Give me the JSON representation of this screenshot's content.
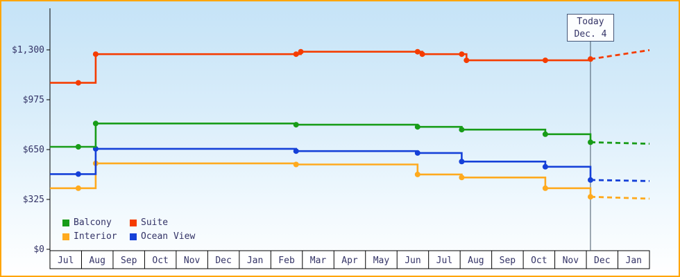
{
  "chart_data": {
    "type": "line",
    "subtype": "step-price-history",
    "title": "",
    "y_axis": {
      "min": 0,
      "max": 1300,
      "ticks": [
        {
          "label": "$1,300",
          "value": 1300
        },
        {
          "label": "$975",
          "value": 975
        },
        {
          "label": "$650",
          "value": 650
        },
        {
          "label": "$325",
          "value": 325
        },
        {
          "label": "$0",
          "value": 0
        }
      ]
    },
    "x_axis": {
      "unit": "month",
      "months": [
        "Jul",
        "Aug",
        "Sep",
        "Oct",
        "Nov",
        "Dec",
        "Jan",
        "Feb",
        "Mar",
        "Apr",
        "May",
        "Jun",
        "Jul",
        "Aug",
        "Sep",
        "Oct",
        "Nov",
        "Dec",
        "Jan"
      ]
    },
    "today": {
      "line1": "Today",
      "line2": "Dec. 4",
      "month_position": 17.13
    },
    "series": [
      {
        "name": "Interior",
        "color": "#ffaa1e",
        "points": [
          [
            0,
            398
          ],
          [
            0.9,
            398
          ],
          [
            1.45,
            560
          ],
          [
            7.8,
            553
          ],
          [
            11.65,
            488
          ],
          [
            13.05,
            468
          ],
          [
            15.7,
            398
          ],
          [
            17.13,
            342
          ]
        ],
        "forecast": [
          [
            17.13,
            342
          ],
          [
            19,
            330
          ]
        ]
      },
      {
        "name": "Ocean View",
        "color": "#1540d8",
        "points": [
          [
            0,
            490
          ],
          [
            0.9,
            490
          ],
          [
            1.45,
            655
          ],
          [
            7.8,
            640
          ],
          [
            11.65,
            628
          ],
          [
            13.05,
            572
          ],
          [
            15.7,
            538
          ],
          [
            17.13,
            452
          ]
        ],
        "forecast": [
          [
            17.13,
            452
          ],
          [
            19,
            445
          ]
        ]
      },
      {
        "name": "Balcony",
        "color": "#189c18",
        "points": [
          [
            0,
            668
          ],
          [
            0.9,
            668
          ],
          [
            1.45,
            820
          ],
          [
            7.8,
            812
          ],
          [
            11.65,
            798
          ],
          [
            13.05,
            780
          ],
          [
            15.7,
            750
          ],
          [
            17.13,
            698
          ]
        ],
        "forecast": [
          [
            17.13,
            698
          ],
          [
            19,
            688
          ]
        ]
      },
      {
        "name": "Suite",
        "color": "#f53c00",
        "points": [
          [
            0,
            1085
          ],
          [
            0.9,
            1085
          ],
          [
            1.45,
            1272
          ],
          [
            7.8,
            1272
          ],
          [
            7.95,
            1288
          ],
          [
            11.65,
            1288
          ],
          [
            11.8,
            1272
          ],
          [
            13.05,
            1272
          ],
          [
            13.2,
            1232
          ],
          [
            15.7,
            1232
          ],
          [
            17.13,
            1240
          ]
        ],
        "forecast": [
          [
            17.13,
            1240
          ],
          [
            19,
            1298
          ]
        ]
      }
    ],
    "legend": {
      "position": "bottom-left",
      "entries": [
        {
          "label": "Balcony",
          "color": "#189c18"
        },
        {
          "label": "Suite",
          "color": "#f53c00"
        },
        {
          "label": "Interior",
          "color": "#ffaa1e"
        },
        {
          "label": "Ocean View",
          "color": "#1540d8"
        }
      ]
    }
  },
  "frame": {
    "border_color": "#ffa500",
    "text_color": "#333366",
    "today_line_color": "#445566",
    "axis_color": "#000000"
  }
}
